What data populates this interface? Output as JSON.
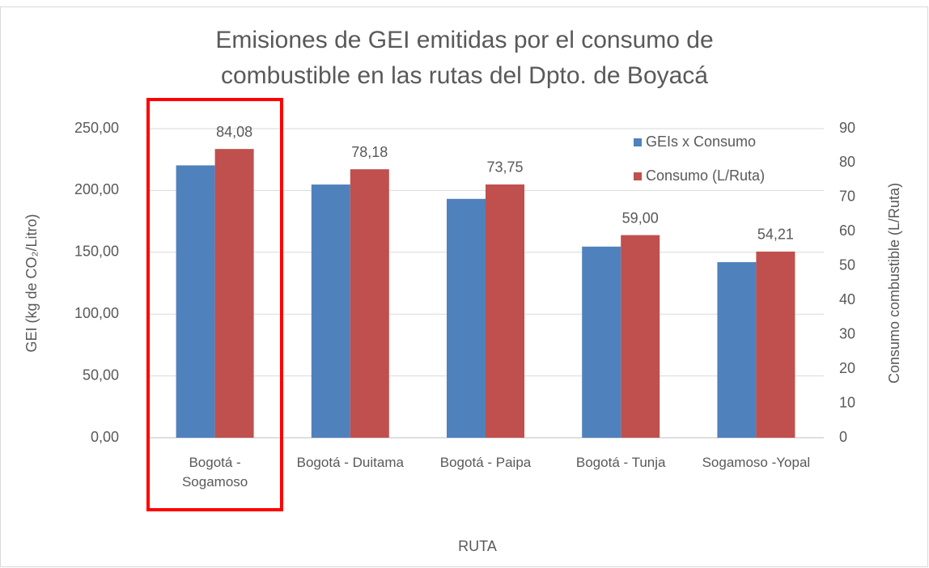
{
  "chart_data": {
    "type": "bar",
    "title": "Emisiones de GEI emitidas por el consumo de combustible en las rutas del Dpto. de Boyacá",
    "xlabel": "RUTA",
    "ylabel": "GEI (kg de CO₂/Litro)",
    "y2label": "Consumo combustible (L/Ruta)",
    "categories": [
      "Bogotá - Sogamoso",
      "Bogotá - Duitama",
      "Bogotá - Paipa",
      "Bogotá - Tunja",
      "Sogamoso -Yopal"
    ],
    "series": [
      {
        "name": "GEIs x Consumo",
        "color": "#4f81bd",
        "axis": "y",
        "values": [
          220.3,
          204.8,
          193.2,
          154.6,
          142.0
        ]
      },
      {
        "name": "Consumo (L/Ruta)",
        "color": "#c0504d",
        "axis": "y2",
        "values": [
          84.08,
          78.18,
          73.75,
          59.0,
          54.21
        ],
        "value_labels": [
          "84,08",
          "78,18",
          "73,75",
          "59,00",
          "54,21"
        ]
      }
    ],
    "ylim": [
      0,
      250
    ],
    "yticks": [
      {
        "value": 0,
        "label": "0,00"
      },
      {
        "value": 50,
        "label": "50,00"
      },
      {
        "value": 100,
        "label": "100,00"
      },
      {
        "value": 150,
        "label": "150,00"
      },
      {
        "value": 200,
        "label": "200,00"
      },
      {
        "value": 250,
        "label": "250,00"
      }
    ],
    "y2lim": [
      0,
      90
    ],
    "y2ticks": [
      0,
      10,
      20,
      30,
      40,
      50,
      60,
      70,
      80,
      90
    ],
    "grid": true,
    "legend": "top-right"
  }
}
